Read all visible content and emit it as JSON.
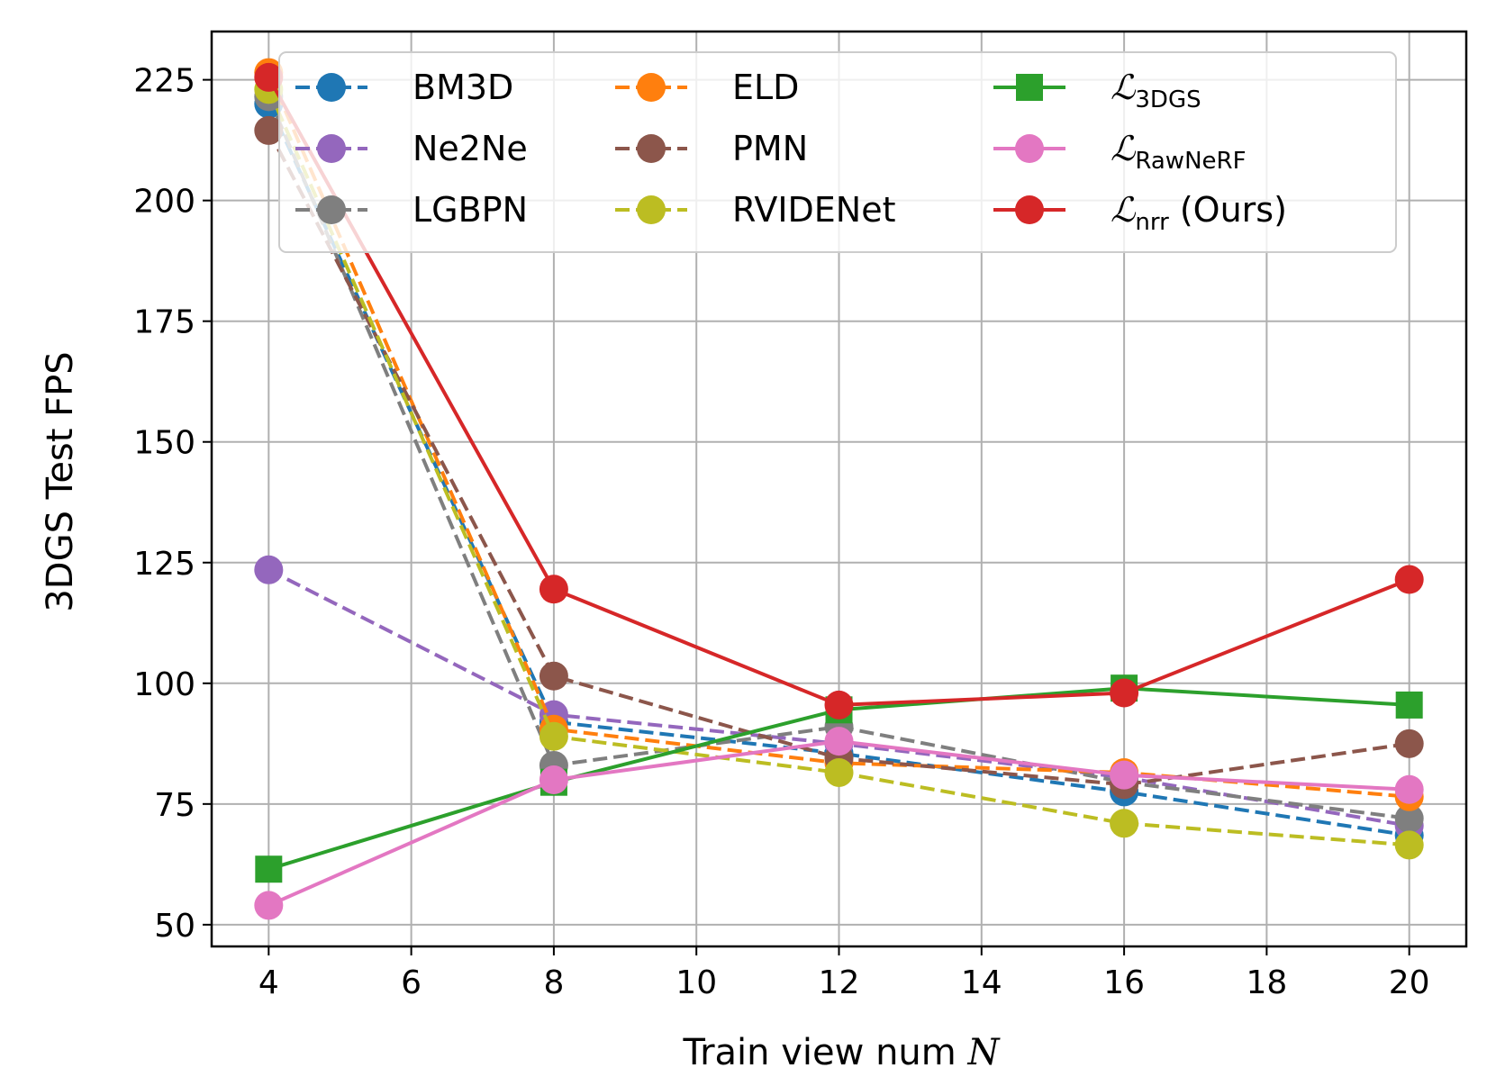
{
  "chart_data": {
    "type": "line",
    "title": "",
    "xlabel": "Train view num",
    "xlabel_var": "N",
    "ylabel": "3DGS Test FPS",
    "x": [
      4,
      8,
      12,
      16,
      20
    ],
    "xlim": [
      3.2,
      20.8
    ],
    "ylim": [
      45.5,
      235
    ],
    "xticks": [
      4,
      6,
      8,
      10,
      12,
      14,
      16,
      18,
      20
    ],
    "yticks": [
      50,
      75,
      100,
      125,
      150,
      175,
      200,
      225
    ],
    "grid": true,
    "legend_position": "top",
    "series": [
      {
        "id": "bm3d",
        "name": "BM3D",
        "color": "#1f77b4",
        "dash": "dashed",
        "marker": "circle",
        "values": [
          220.0,
          92.0,
          85.5,
          77.5,
          68.5
        ]
      },
      {
        "id": "ne2ne",
        "name": "Ne2Ne",
        "color": "#9467bd",
        "dash": "dashed",
        "marker": "circle",
        "values": [
          123.5,
          93.5,
          87.5,
          80.5,
          70.5
        ]
      },
      {
        "id": "lgbpn",
        "name": "LGBPN",
        "color": "#7f7f7f",
        "dash": "dashed",
        "marker": "circle",
        "values": [
          221.5,
          83.0,
          91.0,
          79.5,
          72.0
        ]
      },
      {
        "id": "eld",
        "name": "ELD",
        "color": "#ff7f0e",
        "dash": "dashed",
        "marker": "circle",
        "values": [
          226.5,
          90.5,
          83.5,
          81.5,
          76.5
        ]
      },
      {
        "id": "pmn",
        "name": "PMN",
        "color": "#8c564b",
        "dash": "dashed",
        "marker": "circle",
        "values": [
          214.5,
          101.5,
          84.5,
          79.0,
          87.5
        ]
      },
      {
        "id": "rvidenet",
        "name": "RVIDENet",
        "color": "#bcbd22",
        "dash": "dashed",
        "marker": "circle",
        "values": [
          223.0,
          89.0,
          81.5,
          71.0,
          66.5
        ]
      },
      {
        "id": "l3dgs",
        "name_math": "ℒ",
        "name_sub": "3DGS",
        "name_suffix": "",
        "color": "#2ca02c",
        "dash": "solid",
        "marker": "square",
        "values": [
          61.5,
          79.5,
          94.5,
          99.0,
          95.5
        ]
      },
      {
        "id": "lrawnerf",
        "name_math": "ℒ",
        "name_sub": "RawNeRF",
        "name_suffix": "",
        "color": "#e377c2",
        "dash": "solid",
        "marker": "circle",
        "values": [
          54.0,
          80.0,
          88.0,
          81.0,
          78.0
        ]
      },
      {
        "id": "lnrr",
        "name_math": "ℒ",
        "name_sub": "nrr",
        "name_suffix": " (Ours)",
        "color": "#d62728",
        "dash": "solid",
        "marker": "circle",
        "values": [
          225.5,
          119.5,
          95.5,
          98.0,
          121.5
        ]
      }
    ]
  }
}
